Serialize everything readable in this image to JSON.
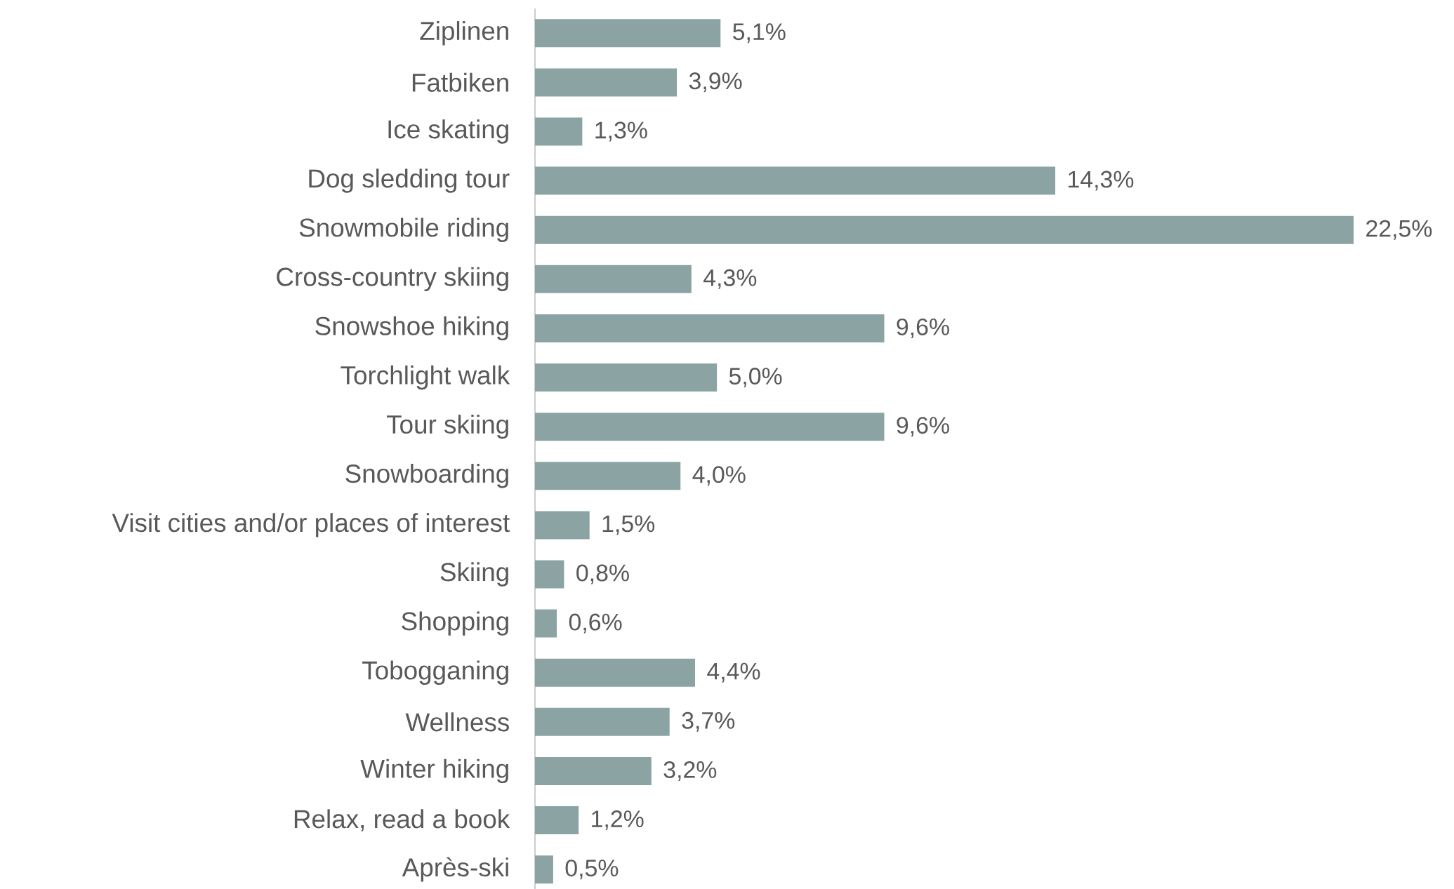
{
  "chart_data": {
    "type": "bar",
    "orientation": "horizontal",
    "categories": [
      "Ziplinen",
      "Fatbiken",
      "Ice skating",
      "Dog sledding tour",
      "Snowmobile riding",
      "Cross-country skiing",
      "Snowshoe hiking",
      "Torchlight walk",
      "Tour skiing",
      "Snowboarding",
      "Visit cities and/or places of interest",
      "Skiing",
      "Shopping",
      "Tobogganing",
      "Wellness",
      "Winter hiking",
      "Relax, read a book",
      "Après-ski"
    ],
    "values": [
      5.1,
      3.9,
      1.3,
      14.3,
      22.5,
      4.3,
      9.6,
      5.0,
      9.6,
      4.0,
      1.5,
      0.8,
      0.6,
      4.4,
      3.7,
      3.2,
      1.2,
      0.5
    ],
    "value_labels": [
      "5,1%",
      "3,9%",
      "1,3%",
      "14,3%",
      "22,5%",
      "4,3%",
      "9,6%",
      "5,0%",
      "9,6%",
      "4,0%",
      "1,5%",
      "0,8%",
      "0,6%",
      "4,4%",
      "3,7%",
      "3,2%",
      "1,2%",
      "0,5%"
    ],
    "color": "#8ca3a3"
  }
}
